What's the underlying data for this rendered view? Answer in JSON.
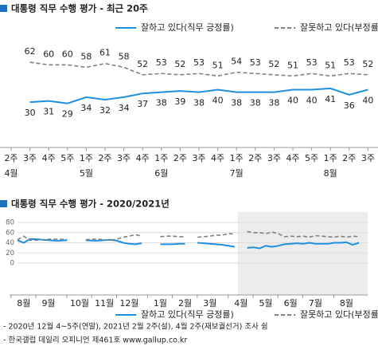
{
  "chart_data": [
    {
      "type": "line",
      "title": "대통령 직무 수행 평가 - 최근 20주",
      "categories": [
        "2주",
        "3주",
        "4주",
        "5주",
        "1주",
        "2주",
        "3주",
        "4주",
        "1주",
        "2주",
        "3주",
        "4주",
        "1주",
        "2주",
        "3주",
        "4주",
        "5주",
        "1주",
        "2주",
        "3주"
      ],
      "months": [
        "4월",
        null,
        null,
        null,
        "5월",
        null,
        null,
        null,
        "6월",
        null,
        null,
        null,
        "7월",
        null,
        null,
        null,
        null,
        "8월",
        null,
        null
      ],
      "ylim": [
        0,
        80
      ],
      "series": [
        {
          "name": "잘하고 있다(직무 긍정률)",
          "color": "#1e90e0",
          "dash": false,
          "values": [
            null,
            30,
            31,
            29,
            34,
            32,
            34,
            37,
            38,
            39,
            38,
            40,
            38,
            38,
            38,
            40,
            40,
            41,
            36,
            40
          ]
        },
        {
          "name": "잘못하고 있다(부정률, %)",
          "color": "#808080",
          "dash": true,
          "values": [
            null,
            62,
            60,
            60,
            58,
            61,
            58,
            52,
            53,
            52,
            53,
            51,
            54,
            53,
            52,
            51,
            53,
            51,
            53,
            52
          ]
        }
      ]
    },
    {
      "type": "line",
      "title": "대통령 직무 수행 평가 - 2020/2021년",
      "categories": [
        null,
        "8월",
        null,
        null,
        null,
        "9월",
        null,
        null,
        null,
        null,
        "10월",
        null,
        null,
        null,
        "11월",
        null,
        null,
        null,
        "12월",
        null,
        null,
        null,
        null,
        "1월",
        null,
        null,
        null,
        "2월",
        null,
        null,
        null,
        "3월",
        null,
        null,
        null,
        null,
        "4월",
        null,
        null,
        null,
        "5월",
        null,
        null,
        null,
        "6월",
        null,
        null,
        null,
        "7월",
        null,
        null,
        null,
        null,
        "8월",
        null,
        null
      ],
      "ylim": [
        0,
        80
      ],
      "yticks": [
        0,
        20,
        40,
        60,
        80
      ],
      "grid": true,
      "series": [
        {
          "name": "잘하고 있다(직무 긍정률)",
          "color": "#1e90e0",
          "dash": false,
          "values": [
            45,
            40,
            47,
            47,
            46,
            45,
            44,
            44,
            45,
            null,
            null,
            45,
            44,
            44,
            45,
            46,
            44,
            40,
            38,
            37,
            39,
            null,
            null,
            37,
            37,
            37,
            38,
            38,
            null,
            40,
            39,
            38,
            37,
            36,
            34,
            32,
            null,
            30,
            31,
            29,
            34,
            32,
            34,
            37,
            38,
            39,
            38,
            40,
            38,
            38,
            38,
            40,
            40,
            41,
            36,
            40
          ]
        },
        {
          "name": "잘못하고 있다(부정률, %)",
          "color": "#808080",
          "dash": true,
          "values": [
            46,
            53,
            45,
            45,
            46,
            47,
            47,
            47,
            46,
            null,
            null,
            46,
            47,
            47,
            46,
            45,
            47,
            51,
            53,
            56,
            53,
            null,
            null,
            52,
            53,
            53,
            52,
            52,
            null,
            51,
            52,
            53,
            55,
            55,
            58,
            57,
            null,
            62,
            60,
            60,
            58,
            61,
            58,
            52,
            53,
            52,
            53,
            51,
            54,
            53,
            52,
            51,
            53,
            51,
            53,
            52
          ]
        }
      ]
    }
  ],
  "notes": [
    "- 2020년 12월 4~5주(연말), 2021년 2월 2주(설), 4월 2주(재보궐선거) 조사 쉼",
    "- 한국갤럽 데일리 오피니언 제461호 www.gallup.co.kr"
  ]
}
